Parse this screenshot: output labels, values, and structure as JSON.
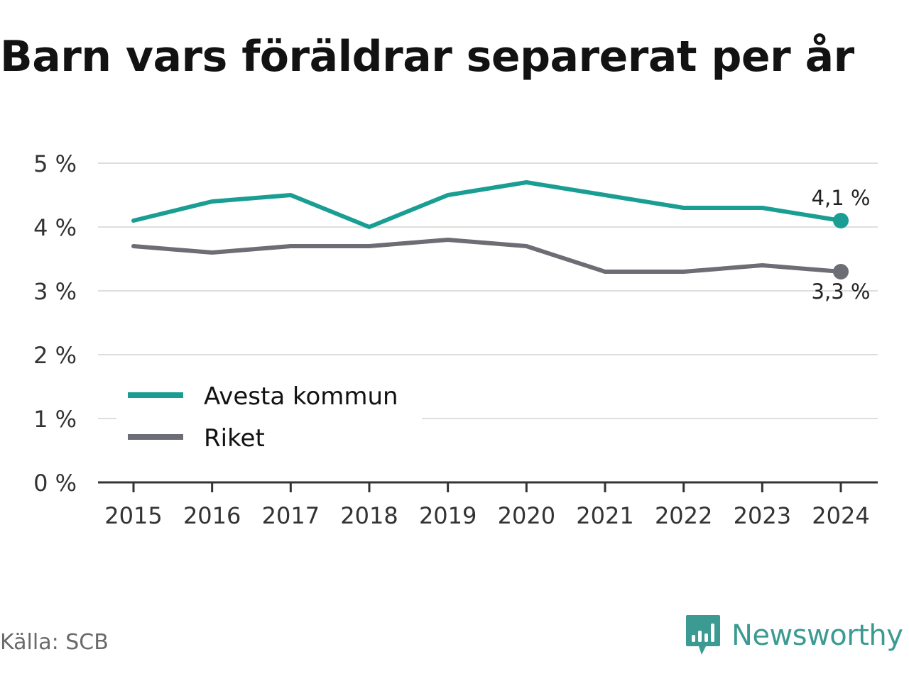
{
  "chart_data": {
    "type": "line",
    "title": "Barn vars föräldrar separerat per år",
    "categories": [
      "2015",
      "2016",
      "2017",
      "2018",
      "2019",
      "2020",
      "2021",
      "2022",
      "2023",
      "2024"
    ],
    "y_ticks": [
      "0 %",
      "1 %",
      "2 %",
      "3 %",
      "4 %",
      "5 %"
    ],
    "ylim": [
      0,
      5
    ],
    "grid": true,
    "legend_position": "bottom-left",
    "series": [
      {
        "name": "Avesta kommun",
        "color": "#1a9e94",
        "values": [
          4.1,
          4.4,
          4.5,
          4.0,
          4.5,
          4.7,
          4.5,
          4.3,
          4.3,
          4.1
        ],
        "end_label": "4,1 %"
      },
      {
        "name": "Riket",
        "color": "#6d6d75",
        "values": [
          3.7,
          3.6,
          3.7,
          3.7,
          3.8,
          3.7,
          3.3,
          3.3,
          3.4,
          3.3
        ],
        "end_label": "3,3 %"
      }
    ]
  },
  "footer": {
    "source": "Källa: SCB",
    "brand": "Newsworthy",
    "brand_icon": "newsworthy-logo-icon",
    "brand_color": "#3b9a92"
  }
}
